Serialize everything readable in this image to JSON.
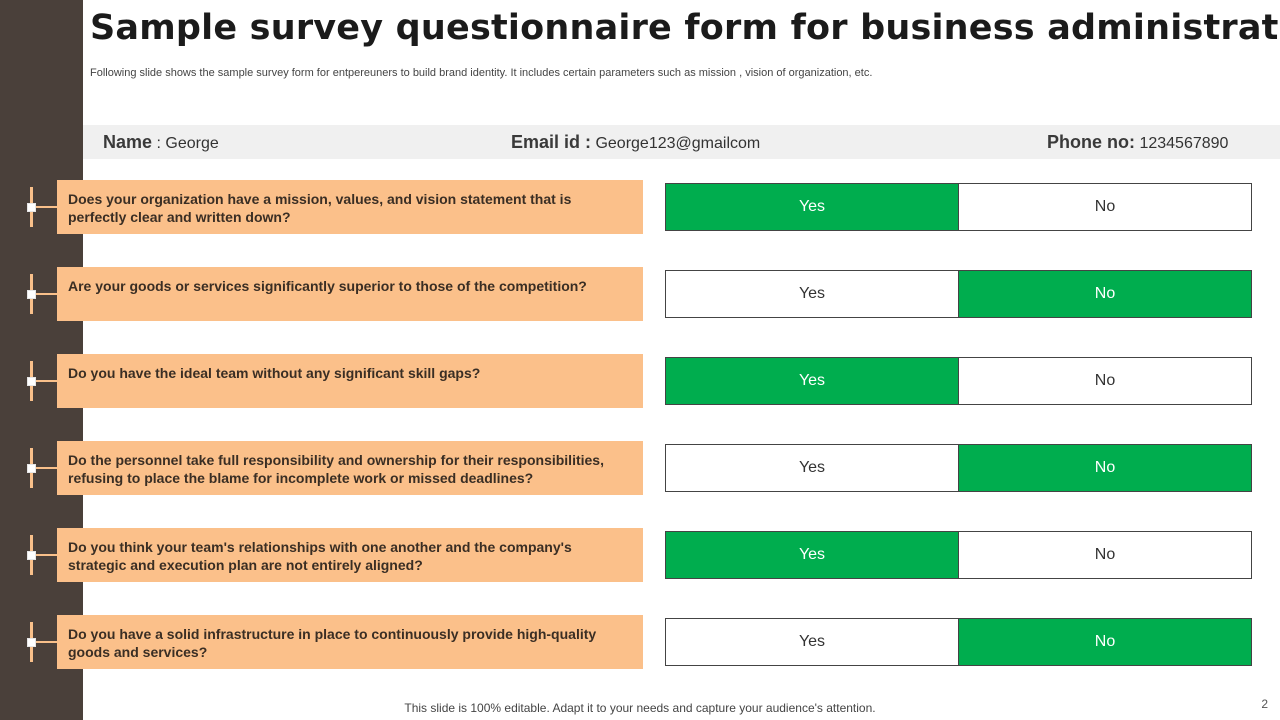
{
  "title": "Sample survey questionnaire form for business administrator",
  "subtitle": "Following slide shows the sample survey form for  entpereuners to build brand identity. It includes certain parameters such as mission , vision of organization, etc.",
  "info": {
    "name_label": "Name",
    "name_sep": " : ",
    "name_value": "George",
    "email_label": "Email id :",
    "email_value": " George123@gmailcom",
    "phone_label": "Phone no:",
    "phone_value": " 1234567890"
  },
  "questions": [
    {
      "text": "Does your organization have a mission, values, and vision statement that is perfectly clear and written down?",
      "yes": "Yes",
      "no": "No",
      "selected": "yes"
    },
    {
      "text": "Are your goods or services significantly superior to those of the competition?",
      "yes": "Yes",
      "no": "No",
      "selected": "no"
    },
    {
      "text": "Do you have the ideal team without any significant skill gaps?",
      "yes": "Yes",
      "no": "No",
      "selected": "yes"
    },
    {
      "text": "Do the personnel take full responsibility and ownership for their responsibilities, refusing to place the blame for incomplete work or missed deadlines?",
      "yes": "Yes",
      "no": "No",
      "selected": "no"
    },
    {
      "text": "Do you think your team's relationships with one another and the company's strategic and execution plan are not entirely aligned?",
      "yes": "Yes",
      "no": "No",
      "selected": "yes"
    },
    {
      "text": "Do you have a solid infrastructure in place to continuously provide high-quality goods and services?",
      "yes": "Yes",
      "no": "No",
      "selected": "no"
    }
  ],
  "footer": "This slide is 100% editable. Adapt it to your needs and capture your audience's attention.",
  "page_number": "2",
  "colors": {
    "selected": "#00ad4e",
    "question_bg": "#fbc08a",
    "sidebar": "#4a403a"
  }
}
